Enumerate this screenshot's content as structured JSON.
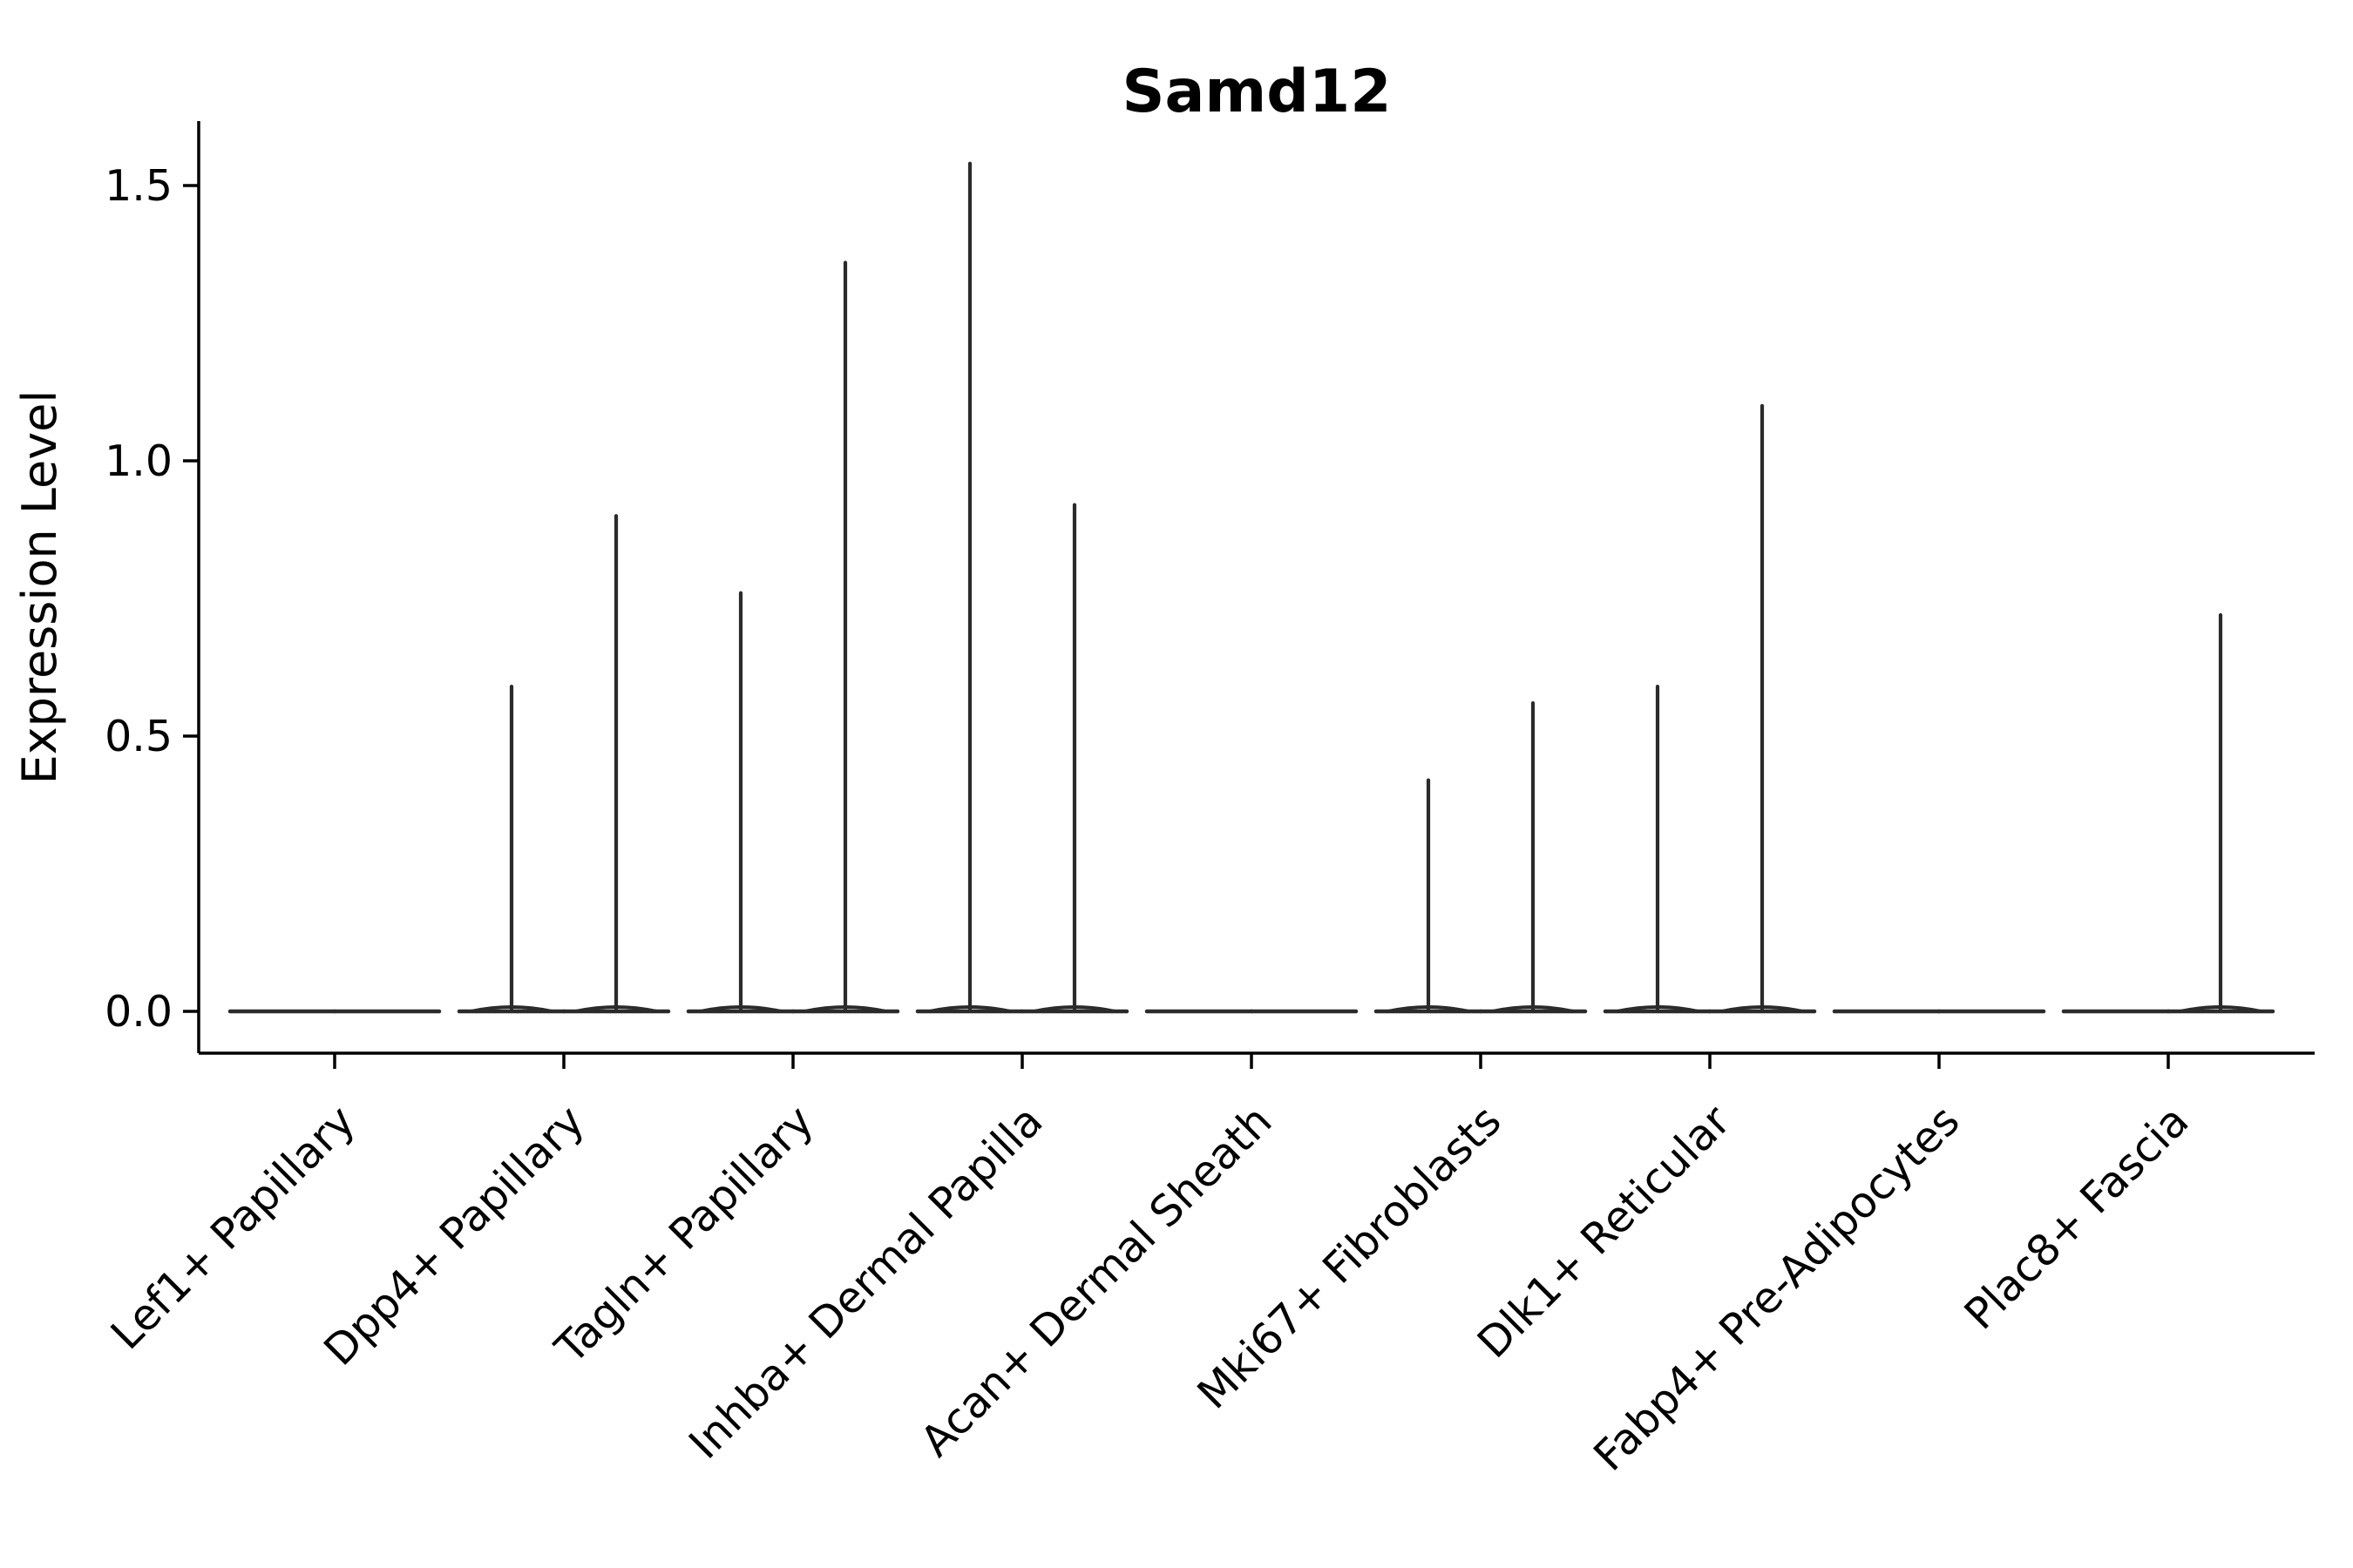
{
  "chart_data": {
    "type": "violin",
    "title": "Samd12",
    "ylabel": "Expression Level",
    "xlabel": "",
    "grid": false,
    "legend": "none",
    "background_color": "#ffffff",
    "axis_color": "#000000",
    "violin_line_color": "#2b2b2b",
    "ytick_labels": [
      "0.0",
      "0.5",
      "1.0",
      "1.5"
    ],
    "ytick_values": [
      0.0,
      0.5,
      1.0,
      1.5
    ],
    "ylim": [
      -0.077,
      1.617
    ],
    "categories": [
      "Lef1+ Papillary",
      "Dpp4+ Papillary",
      "Tagln+ Papillary",
      "Inhba+ Dermal Papilla",
      "Acan+ Dermal Sheath",
      "Mki67+ Fibroblasts",
      "Dlk1+ Reticular",
      "Fabp4+ Pre-Adipocytes",
      "Plac8+ Fascia"
    ],
    "violins_per_category": 2,
    "baseline_value": 0.0,
    "series": [
      {
        "name": "left-violin",
        "max_values": [
          0,
          0.59,
          0.76,
          1.54,
          0,
          0.42,
          0.59,
          0,
          0
        ]
      },
      {
        "name": "right-violin",
        "max_values": [
          0,
          0.9,
          1.36,
          0.92,
          0,
          0.56,
          1.1,
          0,
          0.72
        ]
      }
    ]
  }
}
